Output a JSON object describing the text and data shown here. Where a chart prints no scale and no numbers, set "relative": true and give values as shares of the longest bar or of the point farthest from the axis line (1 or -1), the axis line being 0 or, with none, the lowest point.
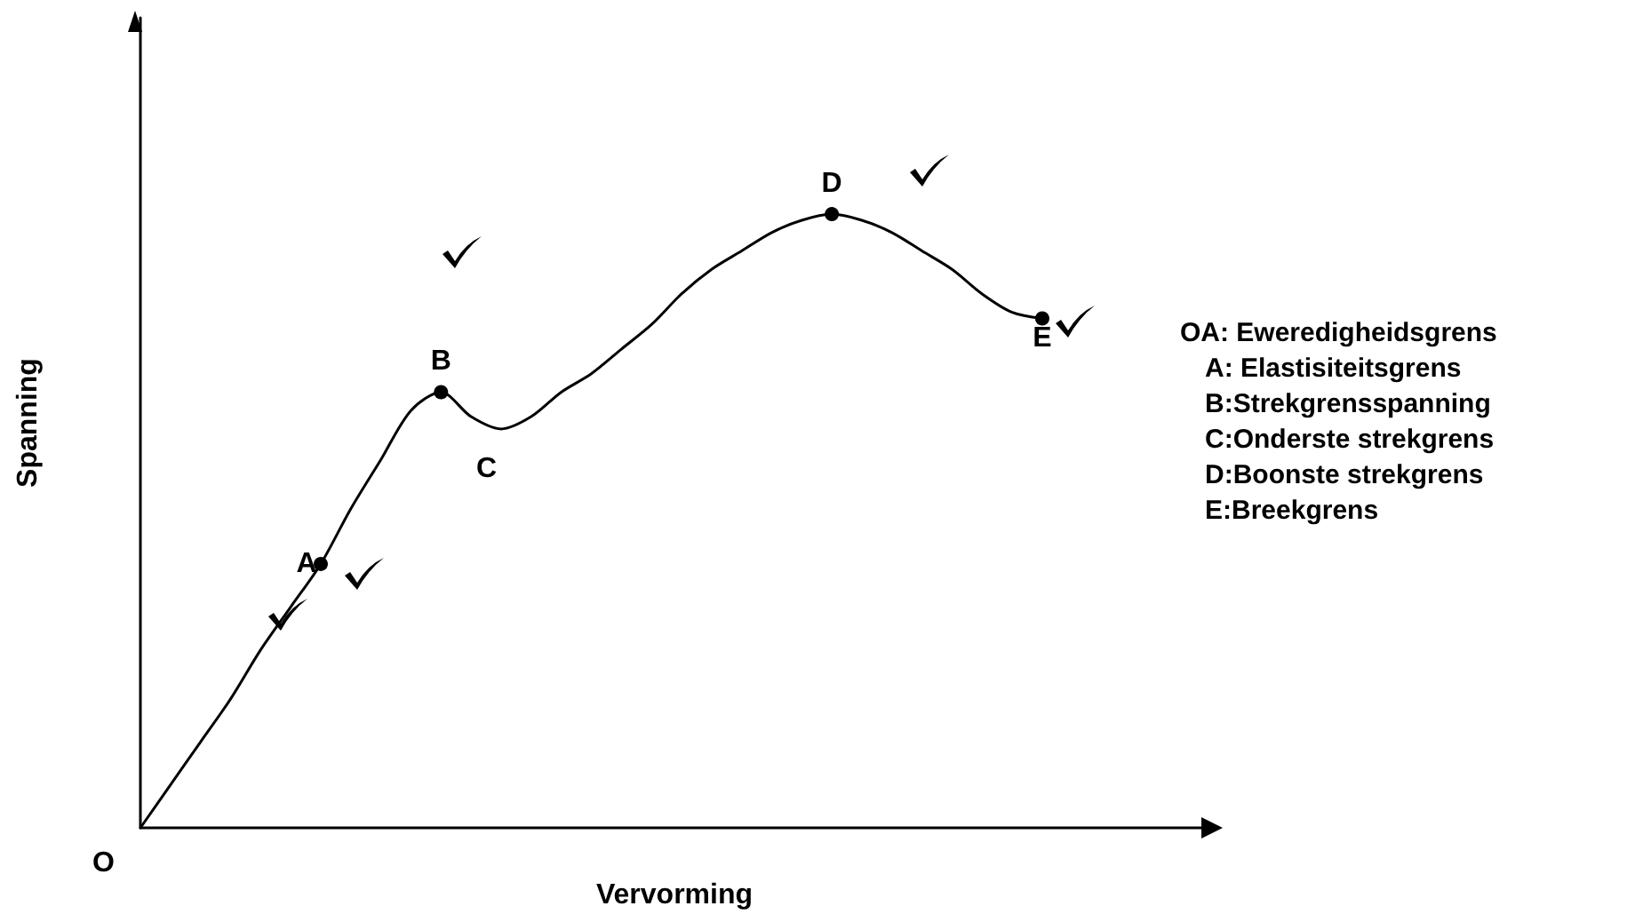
{
  "chart_data": {
    "type": "line",
    "relative": true,
    "xlabel": "Vervorming",
    "ylabel": "Spanning",
    "categories": [
      null,
      null,
      null,
      null,
      null,
      null,
      null,
      null,
      null,
      null,
      null,
      null,
      null,
      null,
      null,
      null,
      null,
      null,
      null,
      null,
      null,
      null,
      null,
      null,
      null,
      null,
      null,
      null,
      null,
      null,
      null
    ],
    "series": [
      {
        "color": "#000000",
        "values": [
          0,
          0.07,
          0.14,
          0.21,
          0.29,
          0.36,
          0.43,
          0.52,
          0.6,
          0.68,
          0.71,
          0.67,
          0.65,
          0.67,
          0.71,
          0.74,
          0.78,
          0.82,
          0.87,
          0.91,
          0.94,
          0.97,
          0.99,
          1.0,
          0.99,
          0.97,
          0.94,
          0.91,
          0.87,
          0.84,
          0.83
        ]
      }
    ],
    "annotations": [
      "O",
      "C",
      {
        "text": "A",
        "y": 0.43
      },
      {
        "text": "B",
        "y": 0.71
      },
      {
        "text": "D",
        "y": 1.0
      },
      {
        "text": "E",
        "y": 0.83
      },
      "OA: Eweredigheidsgrens",
      "A: Elastisiteitsgrens",
      "B:Strekgrensspanning",
      "C:Onderste strekgrens",
      "D:Boonste strekgrens",
      "E:Breekgrens"
    ],
    "grid": false
  }
}
